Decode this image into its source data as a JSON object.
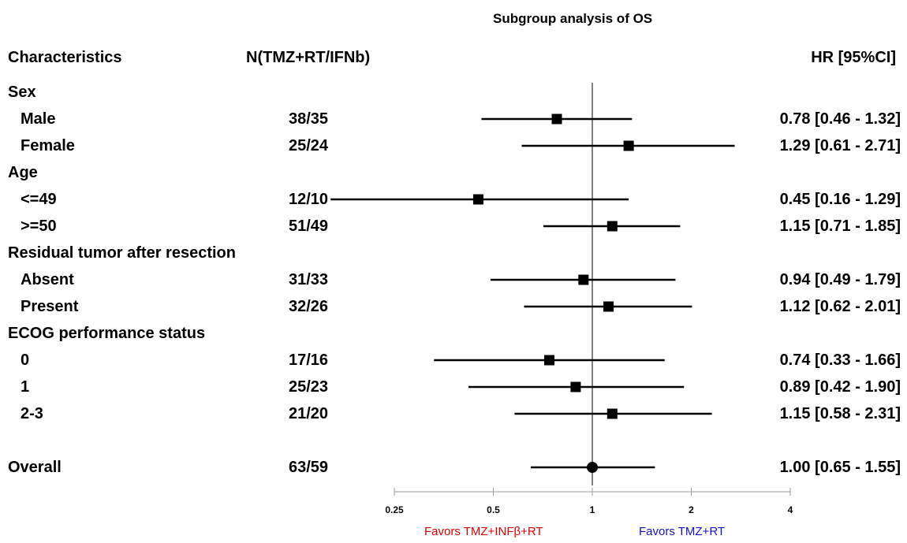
{
  "title": "Subgroup analysis of OS",
  "headers": {
    "characteristics": "Characteristics",
    "n": "N(TMZ+RT/IFNb)",
    "hr": "HR [95%CI]"
  },
  "favors": {
    "left": "Favors TMZ+INFβ+RT",
    "right": "Favors TMZ+RT",
    "left_color": "#e00000",
    "right_color": "#1010d0"
  },
  "chart_data": {
    "type": "forest",
    "title": "Subgroup analysis of OS",
    "x_scale": "log",
    "xlim": [
      0.25,
      4
    ],
    "reference_line": 1,
    "ticks": [
      {
        "value": 0.25,
        "label": "0.25"
      },
      {
        "value": 0.5,
        "label": "0.5"
      },
      {
        "value": 1,
        "label": "1"
      },
      {
        "value": 2,
        "label": "2"
      },
      {
        "value": 4,
        "label": "4"
      }
    ],
    "rows": [
      {
        "label": "Sex",
        "is_group": true
      },
      {
        "label": "Male",
        "n": "38/35",
        "hr": 0.78,
        "lo": 0.46,
        "hi": 1.32,
        "text": "0.78 [0.46 - 1.32]"
      },
      {
        "label": "Female",
        "n": "25/24",
        "hr": 1.29,
        "lo": 0.61,
        "hi": 2.71,
        "text": "1.29 [0.61 - 2.71]"
      },
      {
        "label": "Age",
        "is_group": true
      },
      {
        "label": "<=49",
        "n": "12/10",
        "hr": 0.45,
        "lo": 0.16,
        "hi": 1.29,
        "text": "0.45 [0.16 - 1.29]"
      },
      {
        "label": ">=50",
        "n": "51/49",
        "hr": 1.15,
        "lo": 0.71,
        "hi": 1.85,
        "text": "1.15 [0.71 - 1.85]"
      },
      {
        "label": "Residual tumor after resection",
        "is_group": true
      },
      {
        "label": "Absent",
        "n": "31/33",
        "hr": 0.94,
        "lo": 0.49,
        "hi": 1.79,
        "text": "0.94 [0.49 - 1.79]"
      },
      {
        "label": "Present",
        "n": "32/26",
        "hr": 1.12,
        "lo": 0.62,
        "hi": 2.01,
        "text": "1.12 [0.62 - 2.01]"
      },
      {
        "label": "ECOG performance status",
        "is_group": true
      },
      {
        "label": "0",
        "n": "17/16",
        "hr": 0.74,
        "lo": 0.33,
        "hi": 1.66,
        "text": "0.74 [0.33 - 1.66]"
      },
      {
        "label": "1",
        "n": "25/23",
        "hr": 0.89,
        "lo": 0.42,
        "hi": 1.9,
        "text": "0.89 [0.42 - 1.90]"
      },
      {
        "label": "2-3",
        "n": "21/20",
        "hr": 1.15,
        "lo": 0.58,
        "hi": 2.31,
        "text": "1.15 [0.58 - 2.31]"
      },
      {
        "label": "",
        "is_spacer": true
      },
      {
        "label": "Overall",
        "n": "63/59",
        "hr": 1.0,
        "lo": 0.65,
        "hi": 1.55,
        "text": "1.00 [0.65 - 1.55]",
        "is_overall": true
      }
    ]
  }
}
